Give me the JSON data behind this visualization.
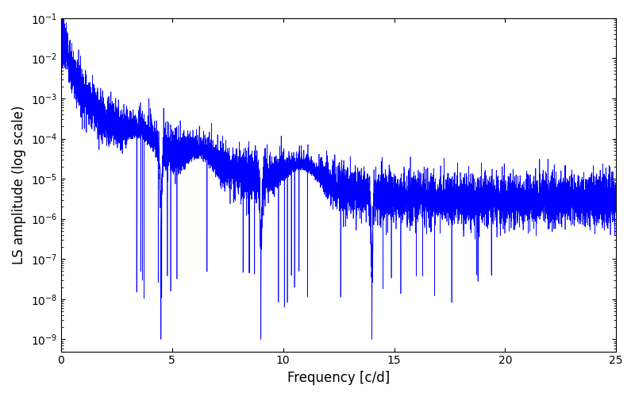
{
  "line_color": "#0000ff",
  "line_width": 0.5,
  "xlabel": "Frequency [c/d]",
  "ylabel": "LS amplitude (log scale)",
  "xlim": [
    0,
    25
  ],
  "ylim_log": [
    5e-10,
    0.1
  ],
  "figsize": [
    8.0,
    5.0
  ],
  "dpi": 100,
  "background_color": "#ffffff",
  "freq_max": 25.0,
  "n_points": 10000,
  "seed": 7
}
